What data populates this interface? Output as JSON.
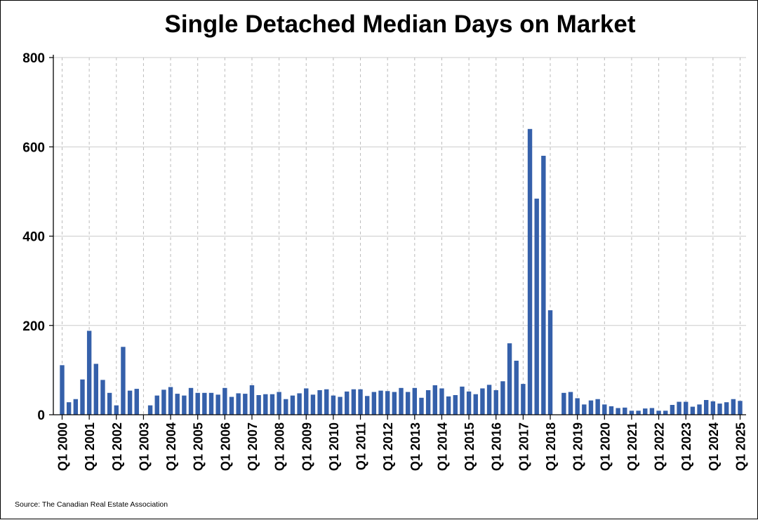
{
  "chart_data": {
    "type": "bar",
    "title": "Single Detached Median Days on Market",
    "source": "Source: The Canadian Real Estate Association",
    "xlabel": "",
    "ylabel": "",
    "ylim": [
      0,
      800
    ],
    "yticks": [
      "0",
      "200",
      "400",
      "600",
      "800"
    ],
    "xticks": [
      "Q1 2000",
      "Q1 2001",
      "Q1 2002",
      "Q1 2003",
      "Q1 2004",
      "Q1 2005",
      "Q1 2006",
      "Q1 2007",
      "Q1 2008",
      "Q1 2009",
      "Q1 2010",
      "Q1 2011",
      "Q1 2012",
      "Q1 2013",
      "Q1 2014",
      "Q1 2015",
      "Q1 2016",
      "Q1 2017",
      "Q1 2018",
      "Q1 2019",
      "Q1 2020",
      "Q1 2021",
      "Q1 2022",
      "Q1 2023",
      "Q1 2024",
      "Q1 2025"
    ],
    "grid": {
      "horizontal": true,
      "vertical_dashed": true
    },
    "bar_color": "#3560AA",
    "start": "Q1 2000",
    "frequency": "quarterly",
    "values": [
      111,
      28,
      35,
      79,
      188,
      114,
      78,
      49,
      21,
      152,
      54,
      58,
      null,
      21,
      43,
      56,
      62,
      47,
      43,
      60,
      49,
      49,
      49,
      45,
      60,
      40,
      48,
      47,
      66,
      44,
      46,
      46,
      51,
      35,
      43,
      48,
      59,
      45,
      55,
      57,
      43,
      40,
      52,
      57,
      57,
      42,
      51,
      54,
      53,
      51,
      60,
      51,
      60,
      38,
      55,
      66,
      59,
      41,
      44,
      63,
      52,
      46,
      59,
      67,
      55,
      75,
      160,
      121,
      69,
      640,
      484,
      580,
      234,
      null,
      49,
      51,
      37,
      23,
      32,
      35,
      23,
      19,
      15,
      16,
      9,
      9,
      14,
      15,
      9,
      9,
      22,
      29,
      29,
      18,
      23,
      33,
      30,
      25,
      28,
      35,
      31
    ]
  }
}
